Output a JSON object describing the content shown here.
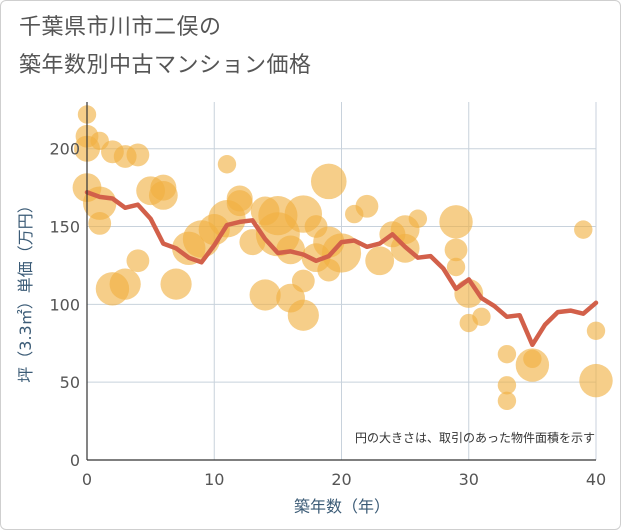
{
  "chart_data": {
    "type": "scatter",
    "title_lines": [
      "千葉県市川市二俣の",
      "築年数別中古マンション価格"
    ],
    "xlabel": "築年数（年）",
    "ylabel": "坪（3.3㎡）単価（万円）",
    "xlim": [
      0,
      40
    ],
    "ylim": [
      0,
      230
    ],
    "x_ticks": [
      0,
      10,
      20,
      30,
      40
    ],
    "y_ticks": [
      0,
      50,
      100,
      150,
      200
    ],
    "grid": true,
    "note": "円の大きさは、取引のあった物件面積を示す",
    "colors": {
      "bubble": "#f0b040",
      "line": "#d2604a",
      "grid": "#c8d2dc"
    },
    "bubbles": [
      {
        "x": 0,
        "y": 222,
        "size": 1
      },
      {
        "x": 0,
        "y": 208,
        "size": 2
      },
      {
        "x": 0,
        "y": 200,
        "size": 3
      },
      {
        "x": 1,
        "y": 205,
        "size": 1
      },
      {
        "x": 0,
        "y": 175,
        "size": 4
      },
      {
        "x": 1,
        "y": 165,
        "size": 6
      },
      {
        "x": 1,
        "y": 152,
        "size": 2
      },
      {
        "x": 2,
        "y": 198,
        "size": 2
      },
      {
        "x": 3,
        "y": 195,
        "size": 2
      },
      {
        "x": 4,
        "y": 196,
        "size": 2
      },
      {
        "x": 2,
        "y": 110,
        "size": 6
      },
      {
        "x": 3,
        "y": 113,
        "size": 5
      },
      {
        "x": 4,
        "y": 128,
        "size": 2
      },
      {
        "x": 5,
        "y": 173,
        "size": 4
      },
      {
        "x": 6,
        "y": 175,
        "size": 3
      },
      {
        "x": 6,
        "y": 170,
        "size": 4
      },
      {
        "x": 7,
        "y": 113,
        "size": 5
      },
      {
        "x": 8,
        "y": 136,
        "size": 6
      },
      {
        "x": 9,
        "y": 142,
        "size": 8
      },
      {
        "x": 10,
        "y": 148,
        "size": 5
      },
      {
        "x": 11,
        "y": 190,
        "size": 1
      },
      {
        "x": 11,
        "y": 155,
        "size": 8
      },
      {
        "x": 12,
        "y": 168,
        "size": 3
      },
      {
        "x": 12,
        "y": 165,
        "size": 3
      },
      {
        "x": 13,
        "y": 140,
        "size": 3
      },
      {
        "x": 14,
        "y": 160,
        "size": 4
      },
      {
        "x": 14,
        "y": 106,
        "size": 5
      },
      {
        "x": 15,
        "y": 145,
        "size": 12
      },
      {
        "x": 15,
        "y": 157,
        "size": 9
      },
      {
        "x": 16,
        "y": 104,
        "size": 4
      },
      {
        "x": 16,
        "y": 135,
        "size": 4
      },
      {
        "x": 17,
        "y": 158,
        "size": 8
      },
      {
        "x": 17,
        "y": 93,
        "size": 5
      },
      {
        "x": 17,
        "y": 115,
        "size": 2
      },
      {
        "x": 18,
        "y": 130,
        "size": 4
      },
      {
        "x": 18,
        "y": 150,
        "size": 2
      },
      {
        "x": 19,
        "y": 179,
        "size": 7
      },
      {
        "x": 19,
        "y": 140,
        "size": 5
      },
      {
        "x": 19,
        "y": 122,
        "size": 2
      },
      {
        "x": 20,
        "y": 133,
        "size": 9
      },
      {
        "x": 21,
        "y": 158,
        "size": 1
      },
      {
        "x": 22,
        "y": 163,
        "size": 2
      },
      {
        "x": 23,
        "y": 128,
        "size": 4
      },
      {
        "x": 24,
        "y": 145,
        "size": 3
      },
      {
        "x": 25,
        "y": 148,
        "size": 4
      },
      {
        "x": 25,
        "y": 136,
        "size": 4
      },
      {
        "x": 26,
        "y": 155,
        "size": 1
      },
      {
        "x": 29,
        "y": 153,
        "size": 6
      },
      {
        "x": 29,
        "y": 135,
        "size": 2
      },
      {
        "x": 29,
        "y": 124,
        "size": 1
      },
      {
        "x": 30,
        "y": 107,
        "size": 4
      },
      {
        "x": 30,
        "y": 88,
        "size": 1
      },
      {
        "x": 31,
        "y": 92,
        "size": 1
      },
      {
        "x": 33,
        "y": 68,
        "size": 1
      },
      {
        "x": 33,
        "y": 48,
        "size": 1
      },
      {
        "x": 33,
        "y": 38,
        "size": 1
      },
      {
        "x": 35,
        "y": 61,
        "size": 6
      },
      {
        "x": 35,
        "y": 65,
        "size": 1
      },
      {
        "x": 39,
        "y": 148,
        "size": 1
      },
      {
        "x": 40,
        "y": 51,
        "size": 6
      },
      {
        "x": 40,
        "y": 83,
        "size": 1
      }
    ],
    "average_line": [
      {
        "x": 0,
        "y": 172
      },
      {
        "x": 1,
        "y": 169
      },
      {
        "x": 2,
        "y": 168
      },
      {
        "x": 3,
        "y": 162
      },
      {
        "x": 4,
        "y": 164
      },
      {
        "x": 5,
        "y": 155
      },
      {
        "x": 6,
        "y": 139
      },
      {
        "x": 7,
        "y": 136
      },
      {
        "x": 8,
        "y": 130
      },
      {
        "x": 9,
        "y": 127
      },
      {
        "x": 10,
        "y": 138
      },
      {
        "x": 11,
        "y": 151
      },
      {
        "x": 12,
        "y": 153
      },
      {
        "x": 13,
        "y": 154
      },
      {
        "x": 14,
        "y": 142
      },
      {
        "x": 15,
        "y": 133
      },
      {
        "x": 16,
        "y": 134
      },
      {
        "x": 17,
        "y": 132
      },
      {
        "x": 18,
        "y": 128
      },
      {
        "x": 19,
        "y": 131
      },
      {
        "x": 20,
        "y": 140
      },
      {
        "x": 21,
        "y": 141
      },
      {
        "x": 22,
        "y": 137
      },
      {
        "x": 23,
        "y": 139
      },
      {
        "x": 24,
        "y": 145
      },
      {
        "x": 25,
        "y": 137
      },
      {
        "x": 26,
        "y": 130
      },
      {
        "x": 27,
        "y": 131
      },
      {
        "x": 28,
        "y": 123
      },
      {
        "x": 29,
        "y": 110
      },
      {
        "x": 30,
        "y": 116
      },
      {
        "x": 31,
        "y": 104
      },
      {
        "x": 32,
        "y": 99
      },
      {
        "x": 33,
        "y": 92
      },
      {
        "x": 34,
        "y": 93
      },
      {
        "x": 35,
        "y": 74
      },
      {
        "x": 36,
        "y": 87
      },
      {
        "x": 37,
        "y": 95
      },
      {
        "x": 38,
        "y": 96
      },
      {
        "x": 39,
        "y": 94
      },
      {
        "x": 40,
        "y": 101
      }
    ]
  }
}
